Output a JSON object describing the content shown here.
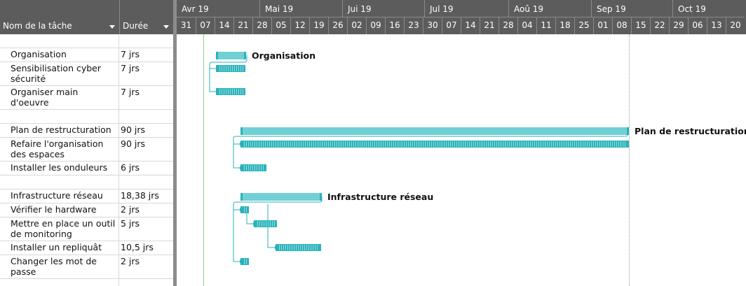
{
  "columns": {
    "name_header": "Nom de la tâche",
    "duration_header": "Durée"
  },
  "months": [
    "Avr 19",
    "Mai 19",
    "Jui 19",
    "Jul 19",
    "Aoû 19",
    "Sep 19",
    "Oct 19"
  ],
  "weeks": [
    "31",
    "07",
    "14",
    "21",
    "28",
    "05",
    "12",
    "19",
    "26",
    "02",
    "09",
    "16",
    "23",
    "30",
    "07",
    "14",
    "21",
    "28",
    "04",
    "11",
    "18",
    "25",
    "01",
    "08",
    "15",
    "22",
    "29",
    "06",
    "13",
    "20"
  ],
  "tasks": [
    {
      "name": "",
      "duration": ""
    },
    {
      "name": "Organisation",
      "duration": "7 jrs",
      "summary": true
    },
    {
      "name": "Sensibilisation cyber sécurité",
      "duration": "7 jrs"
    },
    {
      "name": "Organiser main d'oeuvre",
      "duration": "7 jrs"
    },
    {
      "name": "",
      "duration": ""
    },
    {
      "name": "Plan de restructuration",
      "duration": "90 jrs",
      "summary": true
    },
    {
      "name": "Refaire l'organisation des espaces",
      "duration": "90 jrs"
    },
    {
      "name": "Installer les onduleurs",
      "duration": "6 jrs"
    },
    {
      "name": "",
      "duration": ""
    },
    {
      "name": "Infrastructure réseau",
      "duration": "18,38 jrs",
      "summary": true
    },
    {
      "name": "Vérifier le hardware",
      "duration": "2 jrs"
    },
    {
      "name": "Mettre en place un outil de monitoring",
      "duration": "5 jrs"
    },
    {
      "name": "Installer un repliquât",
      "duration": "10,5 jrs"
    },
    {
      "name": "Changer les mot de passe",
      "duration": "2 jrs"
    },
    {
      "name": "",
      "duration": ""
    }
  ],
  "bar_labels": {
    "organisation": "Organisation",
    "restructuration": "Plan de restructuration",
    "reseau": "Infrastructure réseau"
  },
  "colors": {
    "bar": "#70d0d6",
    "bar_edge": "#2ab2ba",
    "header": "#5c5c5c"
  }
}
